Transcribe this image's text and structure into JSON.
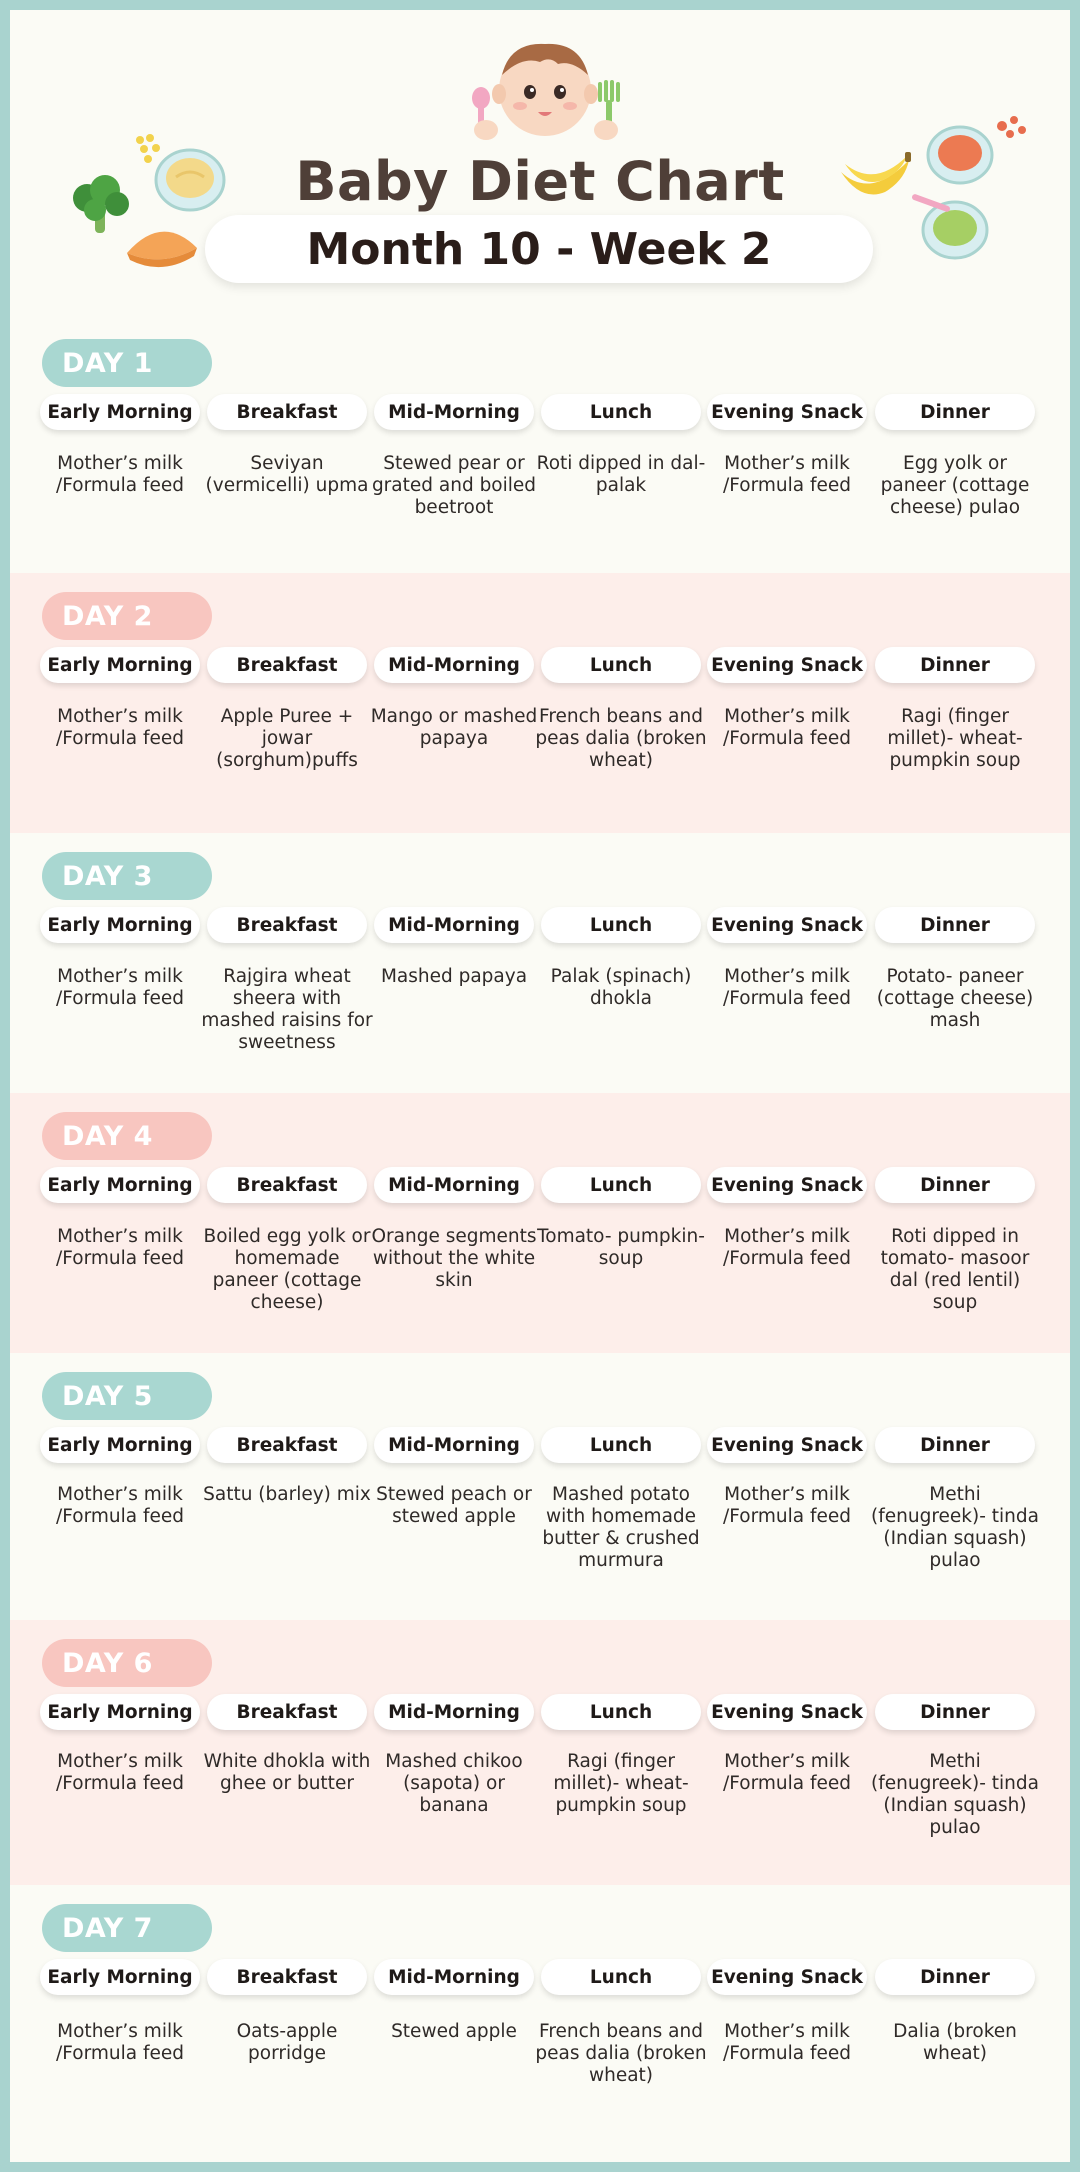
{
  "title": "Baby Diet Chart",
  "subtitle": "Month 10 - Week 2",
  "meal_headers": [
    "Early Morning",
    "Breakfast",
    "Mid-Morning",
    "Lunch",
    "Evening Snack",
    "Dinner"
  ],
  "days": [
    {
      "label": "DAY 1",
      "meals": [
        "Mother’s milk /Formula feed",
        "Seviyan (vermicelli) upma",
        "Stewed pear or grated and boiled beetroot",
        "Roti dipped in dal-palak",
        "Mother’s milk /Formula feed",
        "Egg yolk or paneer (cottage cheese) pulao"
      ]
    },
    {
      "label": "DAY 2",
      "meals": [
        "Mother’s milk /Formula feed",
        "Apple Puree + jowar (sorghum)puffs",
        "Mango or mashed papaya",
        "French beans and peas dalia (broken wheat)",
        "Mother’s milk /Formula feed",
        "Ragi (finger millet)- wheat- pumpkin soup"
      ]
    },
    {
      "label": "DAY 3",
      "meals": [
        "Mother’s milk /Formula feed",
        "Rajgira wheat sheera with mashed raisins for sweetness",
        "Mashed papaya",
        "Palak (spinach) dhokla",
        "Mother’s milk /Formula feed",
        "Potato- paneer (cottage cheese) mash"
      ]
    },
    {
      "label": "DAY 4",
      "meals": [
        "Mother’s milk /Formula feed",
        "Boiled egg yolk or homemade paneer (cottage cheese)",
        "Orange segments without the white skin",
        "Tomato- pumpkin- soup",
        "Mother’s milk /Formula feed",
        "Roti dipped in tomato- masoor dal (red lentil) soup"
      ]
    },
    {
      "label": "DAY 5",
      "meals": [
        "Mother’s milk /Formula feed",
        "Sattu (barley) mix",
        "Stewed peach or stewed apple",
        "Mashed potato with homemade butter & crushed murmura",
        "Mother’s milk /Formula feed",
        "Methi (fenugreek)- tinda (Indian squash) pulao"
      ]
    },
    {
      "label": "DAY 6",
      "meals": [
        "Mother’s milk /Formula feed",
        "White dhokla with ghee or butter",
        "Mashed chikoo (sapota) or banana",
        "Ragi (finger millet)- wheat- pumpkin soup",
        "Mother’s milk /Formula feed",
        "Methi (fenugreek)- tinda (Indian squash) pulao"
      ]
    },
    {
      "label": "DAY 7",
      "meals": [
        "Mother’s milk /Formula feed",
        "Oats-apple porridge",
        "Stewed apple",
        "French beans and peas dalia (broken wheat)",
        "Mother’s milk /Formula feed",
        "Dalia (broken wheat)"
      ]
    }
  ],
  "colors": {
    "teal": "#a9d7d1",
    "pink": "#f8c6c0",
    "alt_band": "#fdeeea",
    "title": "#4f3f38"
  },
  "icons": [
    "baby-face-icon",
    "broccoli-icon",
    "puree-bowl-icon",
    "corn-icon",
    "melon-slice-icon",
    "banana-icon",
    "tomato-soup-bowl-icon",
    "green-puree-bowl-icon"
  ]
}
